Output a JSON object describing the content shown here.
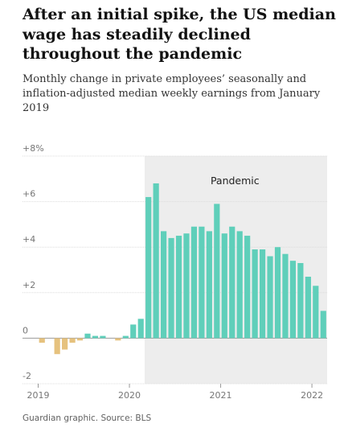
{
  "chart_data": {
    "type": "bar",
    "title": "After an initial spike, the US median wage has steadily declined throughout the pandemic",
    "subtitle": "Monthly change in private employees’ seasonally and inflation-adjusted median weekly earnings from January 2019",
    "source": "Guardian graphic. Source: BLS",
    "categories": [
      "2019",
      null,
      null,
      null,
      null,
      null,
      null,
      null,
      null,
      null,
      null,
      null,
      "2020",
      null,
      null,
      null,
      null,
      null,
      null,
      null,
      null,
      null,
      null,
      null,
      "2021",
      null,
      null,
      null,
      null,
      null,
      null,
      null,
      null,
      null,
      null,
      null,
      "2022",
      null
    ],
    "values": [
      -0.2,
      0,
      -0.7,
      -0.5,
      -0.2,
      -0.1,
      0.2,
      0.1,
      0.1,
      0,
      -0.1,
      0.1,
      0.6,
      0.85,
      6.2,
      6.8,
      4.7,
      4.4,
      4.5,
      4.6,
      4.9,
      4.9,
      4.7,
      5.9,
      4.6,
      4.9,
      4.7,
      4.5,
      3.9,
      3.9,
      3.6,
      4.0,
      3.7,
      3.4,
      3.3,
      2.7,
      2.3,
      1.2
    ],
    "color": "#5fcfba",
    "negative_color": "#e6c27e",
    "shade": {
      "label": "Pandemic",
      "start": 14,
      "color": "#ededed"
    },
    "ylim": [
      -2,
      8
    ],
    "yticks": [
      {
        "value": 8,
        "label": "+8%"
      },
      {
        "value": 6,
        "label": "+6"
      },
      {
        "value": 4,
        "label": "+4"
      },
      {
        "value": 2,
        "label": "+2"
      },
      0,
      -2
    ],
    "grid": true
  }
}
